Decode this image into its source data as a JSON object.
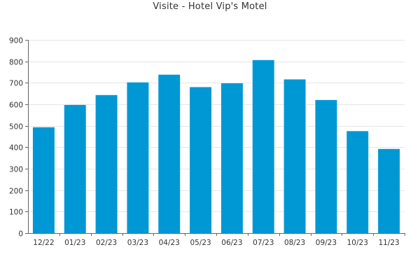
{
  "chart_data": {
    "type": "bar",
    "title": "Visite - Hotel Vip's Motel",
    "xlabel": "",
    "ylabel": "",
    "categories": [
      "12/22",
      "01/23",
      "02/23",
      "03/23",
      "04/23",
      "05/23",
      "06/23",
      "07/23",
      "08/23",
      "09/23",
      "10/23",
      "11/23"
    ],
    "values": [
      493,
      597,
      643,
      702,
      738,
      680,
      698,
      806,
      716,
      620,
      475,
      392
    ],
    "ylim": [
      0,
      900
    ],
    "yticks": [
      "0",
      "100",
      "200",
      "300",
      "400",
      "500",
      "600",
      "700",
      "800",
      "900"
    ],
    "grid": true,
    "bar_color": "#0098d4"
  }
}
